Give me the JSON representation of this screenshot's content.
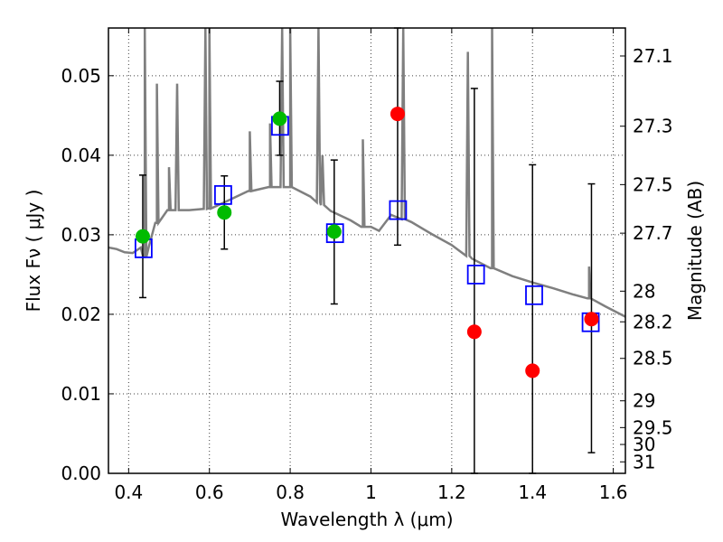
{
  "chart_data": {
    "type": "scatter",
    "xlabel": "Wavelength  λ (μm)",
    "ylabel": "Flux  Fν  ( μJy )",
    "ylabel_right": "Magnitude (AB)",
    "xlim": [
      0.35,
      1.63
    ],
    "ylim": [
      0.0,
      0.056
    ],
    "grid": true,
    "x_ticks": [
      0.4,
      0.6,
      0.8,
      1.0,
      1.2,
      1.4,
      1.6
    ],
    "x_tick_labels": [
      "0.4",
      "0.6",
      "0.8",
      "1",
      "1.2",
      "1.4",
      "1.6"
    ],
    "y_ticks": [
      0.0,
      0.01,
      0.02,
      0.03,
      0.04,
      0.05
    ],
    "y_tick_labels": [
      "0.00",
      "0.01",
      "0.02",
      "0.03",
      "0.04",
      "0.05"
    ],
    "right_ticks": [
      {
        "label": "27.1",
        "mag": 27.1
      },
      {
        "label": "27.3",
        "mag": 27.3
      },
      {
        "label": "27.5",
        "mag": 27.5
      },
      {
        "label": "27.7",
        "mag": 27.7
      },
      {
        "label": "28",
        "mag": 28.0
      },
      {
        "label": "28.2",
        "mag": 28.2
      },
      {
        "label": "28.5",
        "mag": 28.5
      },
      {
        "label": "29",
        "mag": 29.0
      },
      {
        "label": "29.5",
        "mag": 29.5
      },
      {
        "label": "30",
        "mag": 30.0
      },
      {
        "label": "31",
        "mag": 31.0
      }
    ],
    "sed_model": {
      "color": "#7f7f7f",
      "continuum": [
        [
          0.35,
          0.0284
        ],
        [
          0.37,
          0.0282
        ],
        [
          0.39,
          0.0278
        ],
        [
          0.41,
          0.0277
        ],
        [
          0.43,
          0.0284
        ],
        [
          0.44,
          0.0272
        ],
        [
          0.45,
          0.0285
        ],
        [
          0.47,
          0.0315
        ],
        [
          0.5,
          0.0331
        ],
        [
          0.55,
          0.0331
        ],
        [
          0.6,
          0.0333
        ],
        [
          0.65,
          0.0344
        ],
        [
          0.7,
          0.0355
        ],
        [
          0.75,
          0.036
        ],
        [
          0.8,
          0.036
        ],
        [
          0.85,
          0.0348
        ],
        [
          0.9,
          0.033
        ],
        [
          0.95,
          0.0318
        ],
        [
          0.98,
          0.031
        ],
        [
          1.0,
          0.031
        ],
        [
          1.02,
          0.0305
        ],
        [
          1.05,
          0.0325
        ],
        [
          1.1,
          0.0316
        ],
        [
          1.15,
          0.0301
        ],
        [
          1.2,
          0.0287
        ],
        [
          1.25,
          0.027
        ],
        [
          1.3,
          0.0258
        ],
        [
          1.35,
          0.0248
        ],
        [
          1.4,
          0.024
        ],
        [
          1.45,
          0.0233
        ],
        [
          1.5,
          0.0225
        ],
        [
          1.54,
          0.022
        ],
        [
          1.58,
          0.021
        ],
        [
          1.63,
          0.0197
        ]
      ],
      "lines": [
        [
          0.44,
          0.06
        ],
        [
          0.47,
          0.049
        ],
        [
          0.5,
          0.0385
        ],
        [
          0.52,
          0.049
        ],
        [
          0.59,
          0.06
        ],
        [
          0.6,
          0.06
        ],
        [
          0.7,
          0.043
        ],
        [
          0.75,
          0.044
        ],
        [
          0.78,
          0.06
        ],
        [
          0.8,
          0.06
        ],
        [
          0.87,
          0.06
        ],
        [
          0.88,
          0.04
        ],
        [
          0.98,
          0.042
        ],
        [
          1.08,
          0.06
        ],
        [
          1.24,
          0.053
        ],
        [
          1.3,
          0.06
        ],
        [
          1.54,
          0.026
        ]
      ]
    },
    "series": [
      {
        "name": "",
        "marker": "square",
        "color": "#0000ff",
        "points": [
          {
            "x": 0.437,
            "y": 0.0283
          },
          {
            "x": 0.634,
            "y": 0.035
          },
          {
            "x": 0.775,
            "y": 0.0437
          },
          {
            "x": 0.911,
            "y": 0.0302
          },
          {
            "x": 1.067,
            "y": 0.0331
          },
          {
            "x": 1.26,
            "y": 0.025
          },
          {
            "x": 1.404,
            "y": 0.0224
          },
          {
            "x": 1.544,
            "y": 0.019
          }
        ]
      },
      {
        "name": "",
        "marker": "circle",
        "color": "#00bb00",
        "points": [
          {
            "x": 0.435,
            "y": 0.0298,
            "yerr_low": 0.0221,
            "yerr_high": 0.0375
          },
          {
            "x": 0.637,
            "y": 0.0328,
            "yerr_low": 0.0282,
            "yerr_high": 0.0374
          },
          {
            "x": 0.774,
            "y": 0.0446,
            "yerr_low": 0.04,
            "yerr_high": 0.0493
          },
          {
            "x": 0.909,
            "y": 0.0304,
            "yerr_low": 0.0213,
            "yerr_high": 0.0394
          }
        ]
      },
      {
        "name": "",
        "marker": "circle",
        "color": "#ff0000",
        "points": [
          {
            "x": 1.066,
            "y": 0.0452,
            "yerr_low": 0.0287,
            "yerr_high": 0.056
          },
          {
            "x": 1.256,
            "y": 0.0178,
            "yerr_low": 0.0,
            "yerr_high": 0.0484
          },
          {
            "x": 1.4,
            "y": 0.0129,
            "yerr_low": 0.0,
            "yerr_high": 0.0388
          },
          {
            "x": 1.546,
            "y": 0.0194,
            "yerr_low": 0.0026,
            "yerr_high": 0.0364
          }
        ]
      }
    ]
  }
}
